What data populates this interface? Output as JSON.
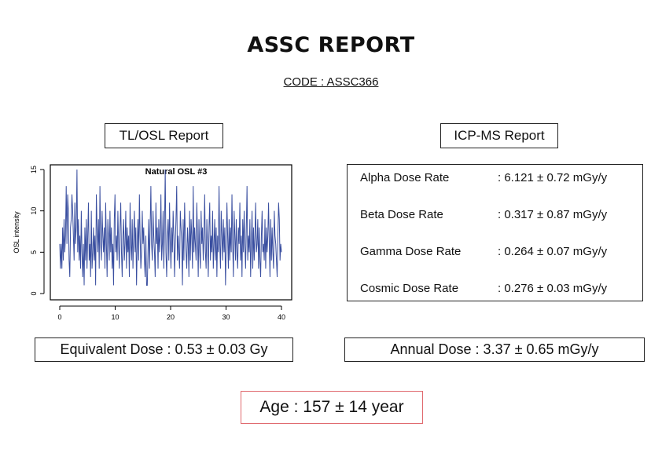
{
  "report": {
    "title": "ASSC REPORT",
    "code": "CODE : ASSC366"
  },
  "tlosl": {
    "label": "TL/OSL Report",
    "equivalent_dose": "Equivalent Dose : 0.53 ± 0.03 Gy"
  },
  "icpms": {
    "label": "ICP-MS Report",
    "rows": [
      {
        "name": "Alpha Dose Rate",
        "value": ": 6.121 ± 0.72 mGy/y"
      },
      {
        "name": "Beta Dose Rate",
        "value": ": 0.317 ± 0.87 mGy/y"
      },
      {
        "name": "Gamma Dose Rate",
        "value": ": 0.264 ± 0.07 mGy/y"
      },
      {
        "name": "Cosmic Dose Rate",
        "value": ": 0.276 ± 0.03 mGy/y"
      }
    ],
    "annual_dose": "Annual Dose : 3.37 ± 0.65 mGy/y"
  },
  "age": "Age : 157 ± 14 year",
  "colors": {
    "line": "#3a4fa0",
    "age_border": "#e0696e"
  },
  "chart_data": {
    "type": "line",
    "title": "Natural OSL #3",
    "xlabel": "",
    "ylabel": "OSL intensity",
    "xlim": [
      0,
      40
    ],
    "ylim": [
      0,
      15
    ],
    "xticks": [
      0,
      10,
      20,
      30,
      40
    ],
    "yticks": [
      0,
      5,
      10,
      15
    ],
    "grid": false,
    "series": [
      {
        "values": [
          6,
          3,
          6,
          3,
          8,
          4,
          9,
          5,
          7,
          13,
          6,
          12,
          10,
          4,
          2,
          8,
          9,
          12,
          10,
          7,
          4,
          11,
          6,
          8,
          15,
          5,
          9,
          4,
          7,
          3,
          10,
          5,
          2,
          6,
          1,
          8,
          4,
          9,
          3,
          7,
          11,
          4,
          6,
          2,
          10,
          3,
          5,
          8,
          4,
          7,
          1,
          12,
          8,
          5,
          9,
          3,
          13,
          6,
          4,
          10,
          7,
          5,
          8,
          3,
          11,
          6,
          2,
          9,
          7,
          4,
          10,
          5,
          8,
          3,
          6,
          1,
          9,
          12,
          5,
          7,
          4,
          10,
          6,
          3,
          8,
          11,
          5,
          2,
          7,
          9,
          4,
          6,
          10,
          3,
          8,
          5,
          7,
          2,
          11,
          6,
          4,
          9,
          3,
          7,
          10,
          5,
          8,
          1,
          6,
          9,
          4,
          12,
          7,
          3,
          5,
          10,
          6,
          8,
          4,
          2,
          7,
          1,
          1,
          5,
          9,
          3,
          8,
          13,
          6,
          4,
          10,
          7,
          5,
          2,
          11,
          6,
          8,
          3,
          9,
          5,
          7,
          12,
          4,
          6,
          10,
          3,
          8,
          15,
          5,
          2,
          7,
          9,
          4,
          11,
          6,
          3,
          8,
          5,
          10,
          7,
          2,
          6,
          9,
          13,
          4,
          7,
          5,
          3,
          10,
          8,
          6,
          1,
          9,
          4,
          11,
          7,
          5,
          3,
          8,
          6,
          2,
          10,
          4,
          9,
          7,
          3,
          13,
          5,
          8,
          6,
          4,
          11,
          7,
          2,
          9,
          5,
          3,
          10,
          6,
          8,
          4,
          7,
          12,
          5,
          3,
          9,
          6,
          2,
          8,
          11,
          4,
          7,
          5,
          10,
          3,
          6,
          9,
          4,
          8,
          2,
          7,
          5,
          13,
          6,
          3,
          10,
          7,
          4,
          9,
          5,
          8,
          1,
          6,
          11,
          7,
          3,
          9,
          4,
          8,
          5,
          12,
          6,
          2,
          10,
          7,
          4,
          9,
          5,
          3,
          8,
          6,
          11,
          4,
          7,
          2,
          9,
          5,
          10,
          6,
          3,
          8,
          13,
          4,
          7,
          5,
          9,
          2,
          6,
          10,
          3,
          8,
          4,
          7,
          11,
          5,
          6,
          9,
          3,
          8,
          4,
          2,
          7,
          10,
          5,
          6,
          4,
          9,
          3,
          8,
          5,
          7,
          11,
          6,
          2,
          9,
          4,
          8,
          5,
          3,
          10,
          7,
          6,
          4,
          2,
          7,
          11,
          9,
          4,
          6,
          5
        ]
      }
    ]
  }
}
